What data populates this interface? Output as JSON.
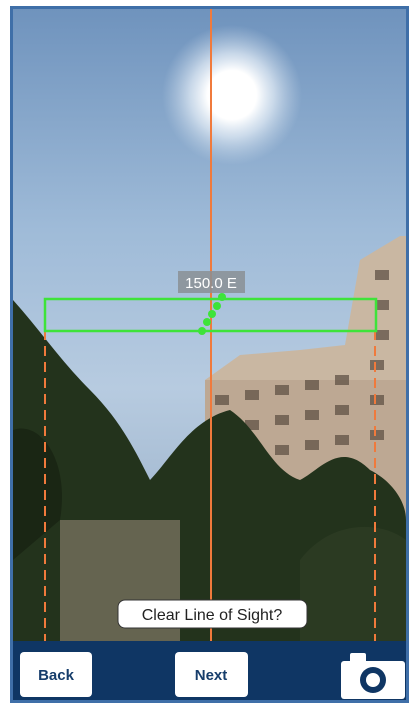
{
  "overlay": {
    "bearing_label": "150.0 E",
    "prompt": "Clear Line of Sight?"
  },
  "toolbar": {
    "back": "Back",
    "next": "Next"
  }
}
